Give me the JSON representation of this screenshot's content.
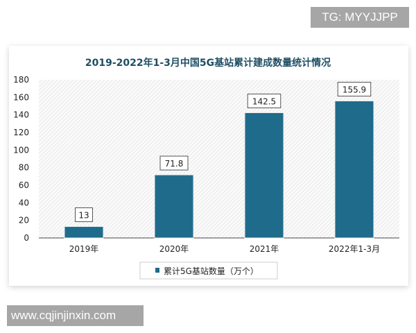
{
  "watermarks": {
    "top": "TG: MYYJJPP",
    "bottom": "www.cqjinjinxin.com"
  },
  "chart_data": {
    "type": "bar",
    "title": "2019-2022年1-3月中国5G基站累计建成数量统计情况",
    "categories": [
      "2019年",
      "2020年",
      "2021年",
      "2022年1-3月"
    ],
    "series": [
      {
        "name": "累计5G基站数量（万个）",
        "values": [
          13,
          71.8,
          142.5,
          155.9
        ],
        "color": "#1f6b8c"
      }
    ],
    "data_labels": [
      "13",
      "71.8",
      "142.5",
      "155.9"
    ],
    "ylim": [
      0,
      180
    ],
    "yticks": [
      "0",
      "20",
      "40",
      "60",
      "80",
      "100",
      "120",
      "140",
      "160",
      "180"
    ],
    "grid": false,
    "legend": "bottom",
    "xlabel": "",
    "ylabel": ""
  }
}
